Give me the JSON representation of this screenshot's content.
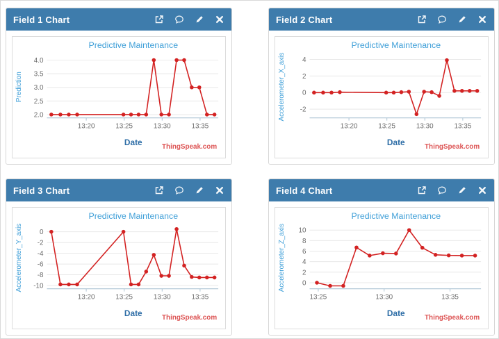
{
  "colors": {
    "header_bg": "#3e7cac",
    "header_text": "#ffffff",
    "panel_border": "#d6d6d6",
    "chart_border": "#dcdcdc",
    "title_blue": "#3f9fd8",
    "ylabel_blue": "#3f9fd8",
    "xlabel_blue": "#2d6da6",
    "tick_gray": "#6b6b6b",
    "grid_line": "#e8e8e8",
    "axis_line": "#aec4d4",
    "series_red": "#d32222",
    "watermark_red": "#dd5555"
  },
  "header_icons": [
    {
      "name": "external-link-icon"
    },
    {
      "name": "comment-icon"
    },
    {
      "name": "edit-pencil-icon"
    },
    {
      "name": "close-icon"
    }
  ],
  "panels": [
    {
      "title": "Field 1 Chart"
    },
    {
      "title": "Field 2 Chart"
    },
    {
      "title": "Field 3 Chart"
    },
    {
      "title": "Field 4 Chart"
    }
  ],
  "chart_data": [
    {
      "type": "line",
      "title": "Predictive Maintenance",
      "xlabel": "Date",
      "ylabel": "Prediction",
      "watermark": "ThingSpeak.com",
      "x_unit": "minutes after 13:00",
      "x": [
        15.4,
        16.6,
        17.7,
        18.8,
        24.9,
        25.9,
        26.9,
        27.9,
        28.9,
        29.9,
        30.9,
        31.9,
        32.9,
        33.9,
        34.9,
        35.9,
        36.9
      ],
      "y": [
        2,
        2,
        2,
        2,
        2,
        2,
        2,
        2,
        4,
        2,
        2,
        4,
        4,
        3,
        3,
        2,
        2
      ],
      "xlim": [
        15.0,
        37.4
      ],
      "ylim": [
        1.88,
        4.15
      ],
      "xticks": {
        "values": [
          20,
          25,
          30,
          35
        ],
        "labels": [
          "13:20",
          "13:25",
          "13:30",
          "13:35"
        ]
      },
      "yticks": {
        "values": [
          2.0,
          2.5,
          3.0,
          3.5,
          4.0
        ],
        "labels": [
          "2.0",
          "2.5",
          "3.0",
          "3.5",
          "4.0"
        ]
      },
      "grid": "horizontal",
      "legend": "none"
    },
    {
      "type": "line",
      "title": "Predictive Maintenance",
      "xlabel": "Date",
      "ylabel": "Accelerometer_X_axis",
      "watermark": "ThingSpeak.com",
      "x_unit": "minutes after 13:00",
      "x": [
        15.4,
        16.6,
        17.7,
        18.8,
        24.9,
        25.9,
        26.9,
        27.9,
        28.9,
        29.9,
        30.9,
        31.9,
        32.9,
        33.9,
        34.9,
        35.9,
        36.9
      ],
      "y": [
        0,
        0,
        0,
        0.05,
        0,
        0,
        0.05,
        0.1,
        -2.6,
        0.1,
        0.05,
        -0.4,
        3.9,
        0.2,
        0.2,
        0.2,
        0.2
      ],
      "xlim": [
        15.0,
        37.4
      ],
      "ylim": [
        -3.05,
        4.4
      ],
      "xticks": {
        "values": [
          20,
          25,
          30,
          35
        ],
        "labels": [
          "13:20",
          "13:25",
          "13:30",
          "13:35"
        ]
      },
      "yticks": {
        "values": [
          -2,
          0,
          2,
          4
        ],
        "labels": [
          "-2",
          "0",
          "2",
          "4"
        ]
      },
      "grid": "horizontal",
      "legend": "none"
    },
    {
      "type": "line",
      "title": "Predictive Maintenance",
      "xlabel": "Date",
      "ylabel": "Accelerometer_Y_axis",
      "watermark": "ThingSpeak.com",
      "x_unit": "minutes after 13:00",
      "x": [
        15.4,
        16.6,
        17.7,
        18.8,
        24.9,
        25.9,
        26.9,
        27.9,
        28.9,
        29.9,
        30.9,
        31.9,
        32.9,
        33.9,
        34.9,
        35.9,
        36.9
      ],
      "y": [
        0,
        -9.8,
        -9.8,
        -9.8,
        0,
        -9.8,
        -9.8,
        -7.4,
        -4.3,
        -8.2,
        -8.2,
        0.5,
        -6.3,
        -8.4,
        -8.5,
        -8.5,
        -8.5
      ],
      "xlim": [
        15.0,
        37.4
      ],
      "ylim": [
        -10.6,
        0.9
      ],
      "xticks": {
        "values": [
          20,
          25,
          30,
          35
        ],
        "labels": [
          "13:20",
          "13:25",
          "13:30",
          "13:35"
        ]
      },
      "yticks": {
        "values": [
          0,
          -2,
          -4,
          -6,
          -8,
          -10
        ],
        "labels": [
          "0",
          "-2",
          "-4",
          "-6",
          "-8",
          "-10"
        ]
      },
      "grid": "horizontal",
      "legend": "none"
    },
    {
      "type": "line",
      "title": "Predictive Maintenance",
      "xlabel": "Date",
      "ylabel": "Accelerometer_Z_axis",
      "watermark": "ThingSpeak.com",
      "x_unit": "minutes after 13:00",
      "x": [
        24.9,
        25.9,
        26.9,
        27.9,
        28.9,
        29.9,
        30.9,
        31.9,
        32.9,
        33.9,
        34.9,
        35.9,
        36.9
      ],
      "y": [
        0,
        -0.6,
        -0.6,
        6.7,
        5.15,
        5.6,
        5.55,
        10,
        6.65,
        5.3,
        5.2,
        5.15,
        5.15
      ],
      "xlim": [
        24.45,
        37.35
      ],
      "ylim": [
        -1.15,
        10.6
      ],
      "xticks": {
        "values": [
          25,
          30,
          35
        ],
        "labels": [
          "13:25",
          "13:30",
          "13:35"
        ]
      },
      "yticks": {
        "values": [
          0,
          2,
          4,
          6,
          8,
          10
        ],
        "labels": [
          "0",
          "2",
          "4",
          "6",
          "8",
          "10"
        ]
      },
      "grid": "horizontal",
      "legend": "none"
    }
  ]
}
